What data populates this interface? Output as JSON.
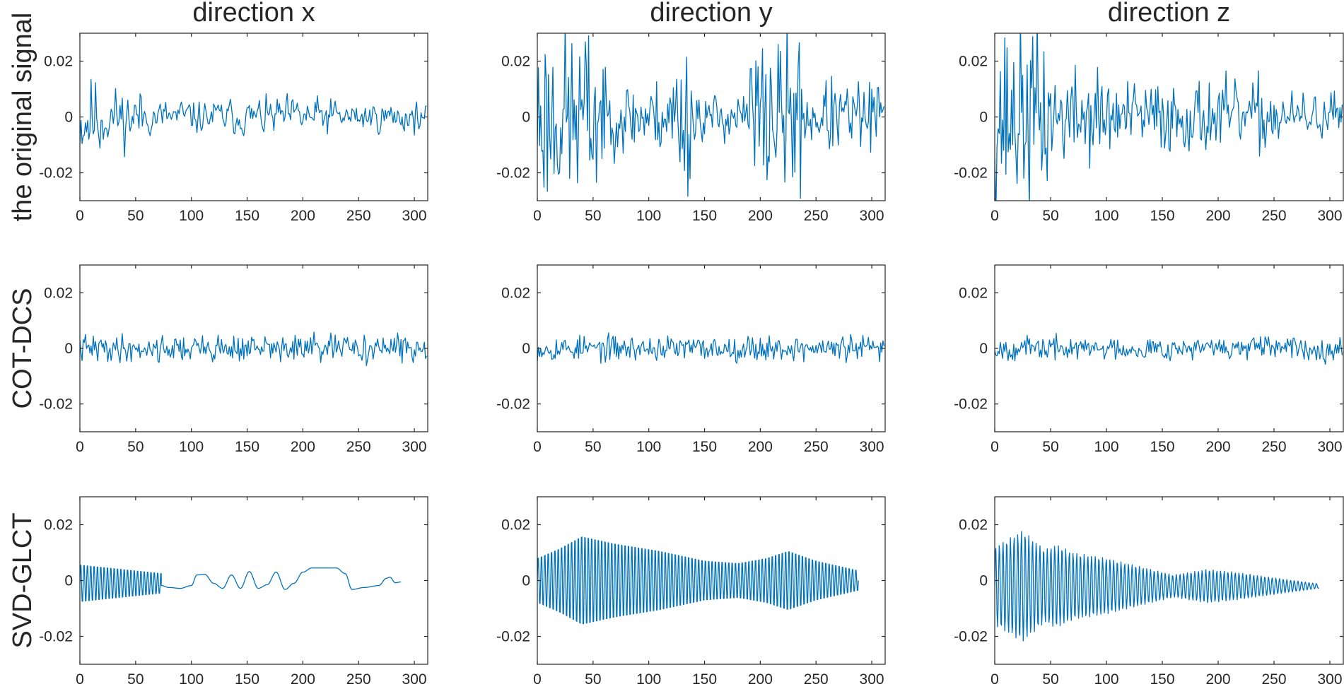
{
  "colors": {
    "signal": "#0072BD",
    "axis": "#262626",
    "background": "#ffffff"
  },
  "chart_data": {
    "type": "line",
    "layout": "3x3 grid of subplots",
    "column_titles": [
      "direction x",
      "direction y",
      "direction z"
    ],
    "row_labels": [
      "the original signal",
      "COT-DCS",
      "SVD-GLCT"
    ],
    "grid": false,
    "legend": "none",
    "panels": [
      {
        "row": 0,
        "col": 0,
        "xlim": [
          0,
          312
        ],
        "ylim": [
          -0.03,
          0.03
        ],
        "xticks": [
          0,
          50,
          100,
          150,
          200,
          250,
          300
        ],
        "yticks": [
          -0.02,
          0,
          0.02
        ],
        "series": [
          {
            "x_range": [
              0,
              312
            ],
            "signal": {
              "kind": "noise",
              "seed": 11,
              "n": 312,
              "segments": [
                [
                  0,
                  20,
                  0.022
                ],
                [
                  20,
                  60,
                  0.014
                ],
                [
                  60,
                  160,
                  0.008
                ],
                [
                  160,
                  230,
                  0.009
                ],
                [
                  230,
                  312,
                  0.007
                ]
              ],
              "smooth": 0.35
            }
          }
        ]
      },
      {
        "row": 0,
        "col": 1,
        "xlim": [
          0,
          312
        ],
        "ylim": [
          -0.03,
          0.03
        ],
        "xticks": [
          0,
          50,
          100,
          150,
          200,
          250,
          300
        ],
        "yticks": [
          -0.02,
          0,
          0.02
        ],
        "series": [
          {
            "x_range": [
              0,
              312
            ],
            "signal": {
              "kind": "noise",
              "seed": 23,
              "n": 312,
              "segments": [
                [
                  0,
                  60,
                  0.03
                ],
                [
                  60,
                  120,
                  0.012
                ],
                [
                  120,
                  145,
                  0.024
                ],
                [
                  145,
                  190,
                  0.008
                ],
                [
                  190,
                  240,
                  0.026
                ],
                [
                  240,
                  312,
                  0.012
                ]
              ],
              "smooth": 0
            }
          }
        ]
      },
      {
        "row": 0,
        "col": 2,
        "xlim": [
          0,
          312
        ],
        "ylim": [
          -0.03,
          0.03
        ],
        "xticks": [
          0,
          50,
          100,
          150,
          200,
          250,
          300
        ],
        "yticks": [
          -0.02,
          0,
          0.02
        ],
        "series": [
          {
            "x_range": [
              0,
              312
            ],
            "signal": {
              "kind": "noise",
              "seed": 37,
              "n": 312,
              "segments": [
                [
                  0,
                  50,
                  0.03
                ],
                [
                  50,
                  100,
                  0.016
                ],
                [
                  100,
                  250,
                  0.012
                ],
                [
                  250,
                  312,
                  0.008
                ]
              ],
              "smooth": 0
            }
          }
        ]
      },
      {
        "row": 1,
        "col": 0,
        "xlim": [
          0,
          312
        ],
        "ylim": [
          -0.03,
          0.03
        ],
        "xticks": [
          0,
          50,
          100,
          150,
          200,
          250,
          300
        ],
        "yticks": [
          -0.02,
          0,
          0.02
        ],
        "series": [
          {
            "x_range": [
              0,
              312
            ],
            "signal": {
              "kind": "noise",
              "seed": 41,
              "n": 312,
              "segments": [
                [
                  0,
                  312,
                  0.0045
                ]
              ],
              "smooth": 0
            }
          }
        ]
      },
      {
        "row": 1,
        "col": 1,
        "xlim": [
          0,
          312
        ],
        "ylim": [
          -0.03,
          0.03
        ],
        "xticks": [
          0,
          50,
          100,
          150,
          200,
          250,
          300
        ],
        "yticks": [
          -0.02,
          0,
          0.02
        ],
        "series": [
          {
            "x_range": [
              0,
              312
            ],
            "signal": {
              "kind": "noise",
              "seed": 53,
              "n": 312,
              "segments": [
                [
                  0,
                  312,
                  0.0042
                ]
              ],
              "smooth": 0
            }
          }
        ]
      },
      {
        "row": 1,
        "col": 2,
        "xlim": [
          0,
          312
        ],
        "ylim": [
          -0.03,
          0.03
        ],
        "xticks": [
          0,
          50,
          100,
          150,
          200,
          250,
          300
        ],
        "yticks": [
          -0.02,
          0,
          0.02
        ],
        "series": [
          {
            "x_range": [
              0,
              312
            ],
            "signal": {
              "kind": "noise",
              "seed": 67,
              "n": 312,
              "segments": [
                [
                  0,
                  312,
                  0.0038
                ]
              ],
              "smooth": 0
            }
          }
        ]
      },
      {
        "row": 2,
        "col": 0,
        "xlim": [
          0,
          312
        ],
        "ylim": [
          -0.03,
          0.03
        ],
        "xticks": [
          0,
          50,
          100,
          150,
          200,
          250,
          300
        ],
        "yticks": [
          -0.02,
          0,
          0.02
        ],
        "series": [
          {
            "x_range": [
              0,
              288
            ],
            "signal": {
              "kind": "piecewise",
              "pieces": [
                {
                  "type": "osc",
                  "x": [
                    0,
                    73
                  ],
                  "period": 3.0,
                  "amp": [
                    0.0075,
                    0.004
                  ],
                  "offset": -0.001
                },
                {
                  "type": "points",
                  "pts": [
                    [
                      73,
                      -0.0018
                    ],
                    [
                      80,
                      -0.0025
                    ],
                    [
                      90,
                      -0.0028
                    ],
                    [
                      100,
                      -0.0018
                    ],
                    [
                      105,
                      0.002
                    ],
                    [
                      112,
                      0.0022
                    ],
                    [
                      120,
                      -0.001
                    ],
                    [
                      128,
                      -0.0028
                    ],
                    [
                      136,
                      0.002
                    ],
                    [
                      144,
                      -0.0028
                    ],
                    [
                      152,
                      0.0032
                    ],
                    [
                      160,
                      -0.0028
                    ],
                    [
                      168,
                      -0.0015
                    ],
                    [
                      176,
                      0.003
                    ],
                    [
                      184,
                      -0.0032
                    ],
                    [
                      192,
                      -0.001
                    ],
                    [
                      200,
                      0.003
                    ],
                    [
                      208,
                      0.0045
                    ],
                    [
                      230,
                      0.0045
                    ],
                    [
                      238,
                      0.0025
                    ],
                    [
                      244,
                      -0.0032
                    ],
                    [
                      255,
                      -0.0025
                    ],
                    [
                      268,
                      -0.0018
                    ],
                    [
                      275,
                      0.0008
                    ],
                    [
                      278,
                      0.0012
                    ],
                    [
                      283,
                      -0.0008
                    ],
                    [
                      288,
                      -0.0005
                    ]
                  ]
                }
              ]
            }
          }
        ]
      },
      {
        "row": 2,
        "col": 1,
        "xlim": [
          0,
          312
        ],
        "ylim": [
          -0.03,
          0.03
        ],
        "xticks": [
          0,
          50,
          100,
          150,
          200,
          250,
          300
        ],
        "yticks": [
          -0.02,
          0,
          0.02
        ],
        "series": [
          {
            "x_range": [
              0,
              288
            ],
            "signal": {
              "kind": "osc",
              "period": 3.0,
              "env": [
                [
                  0,
                  0.009
                ],
                [
                  20,
                  0.013
                ],
                [
                  40,
                  0.018
                ],
                [
                  70,
                  0.015
                ],
                [
                  110,
                  0.012
                ],
                [
                  150,
                  0.008
                ],
                [
                  180,
                  0.007
                ],
                [
                  205,
                  0.009
                ],
                [
                  225,
                  0.012
                ],
                [
                  250,
                  0.008
                ],
                [
                  288,
                  0.004
                ]
              ],
              "offset": 0
            }
          }
        ]
      },
      {
        "row": 2,
        "col": 2,
        "xlim": [
          0,
          312
        ],
        "ylim": [
          -0.03,
          0.03
        ],
        "xticks": [
          0,
          50,
          100,
          150,
          200,
          250,
          300
        ],
        "yticks": [
          -0.02,
          0,
          0.02
        ],
        "series": [
          {
            "x_range": [
              0,
              290
            ],
            "signal": {
              "kind": "osc",
              "period": 3.3,
              "env": [
                [
                  0,
                  0.014
                ],
                [
                  25,
                  0.02
                ],
                [
                  45,
                  0.013
                ],
                [
                  55,
                  0.015
                ],
                [
                  70,
                  0.012
                ],
                [
                  100,
                  0.01
                ],
                [
                  130,
                  0.007
                ],
                [
                  160,
                  0.004
                ],
                [
                  190,
                  0.006
                ],
                [
                  215,
                  0.005
                ],
                [
                  250,
                  0.003
                ],
                [
                  290,
                  0.0008
                ]
              ],
              "offset": -0.002
            }
          }
        ]
      }
    ]
  }
}
